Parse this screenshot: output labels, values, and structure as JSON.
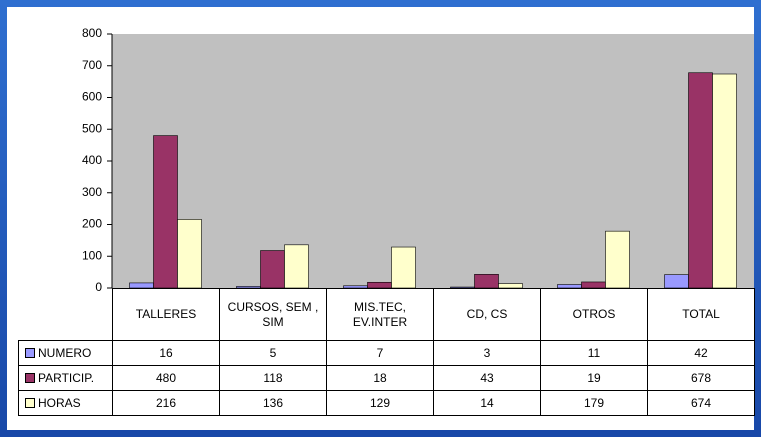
{
  "chart_data": {
    "type": "bar",
    "categories": [
      "TALLERES",
      "CURSOS, SEM , SIM",
      "MIS.TEC, EV.INTER",
      "CD, CS",
      "OTROS",
      "TOTAL"
    ],
    "series": [
      {
        "name": "NUMERO",
        "color": "#9999ff",
        "values": [
          16,
          5,
          7,
          3,
          11,
          42
        ]
      },
      {
        "name": "PARTICIP.",
        "color": "#993366",
        "values": [
          480,
          118,
          18,
          43,
          19,
          678
        ]
      },
      {
        "name": "HORAS",
        "color": "#ffffcc",
        "values": [
          216,
          136,
          129,
          14,
          179,
          674
        ]
      }
    ],
    "ylim": [
      0,
      800
    ],
    "yticks": [
      0,
      100,
      200,
      300,
      400,
      500,
      600,
      700,
      800
    ],
    "grid": false
  }
}
